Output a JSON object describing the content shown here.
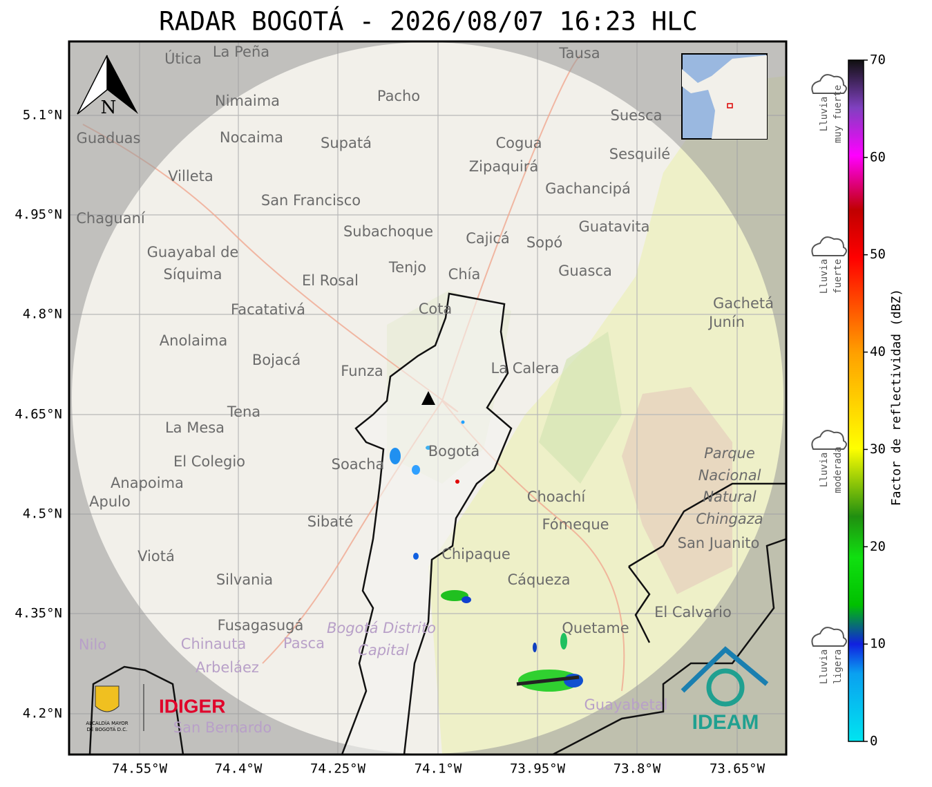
{
  "title": "RADAR BOGOTÁ - 2026/08/07 16:23 HLC",
  "map": {
    "lat_ticks": [
      "5.1°N",
      "4.95°N",
      "4.8°N",
      "4.65°N",
      "4.5°N",
      "4.35°N",
      "4.2°N"
    ],
    "lon_ticks": [
      "74.55°W",
      "74.4°W",
      "74.25°W",
      "74.1°W",
      "73.95°W",
      "73.8°W",
      "73.65°W"
    ],
    "north": "N",
    "places": [
      "Útica",
      "La Peña",
      "Tausa",
      "Pacho",
      "Nimaima",
      "Guaduas",
      "Nocaima",
      "Supatá",
      "Cogua",
      "Suesca",
      "Sesquilé",
      "Villeta",
      "Zipaquirá",
      "Gachancipá",
      "San Francisco",
      "Chaguaní",
      "Subachoque",
      "Cajicá",
      "Sopó",
      "Guatavita",
      "Guayabal de",
      "Síquima",
      "Tenjo",
      "Chía",
      "Guasca",
      "El Rosal",
      "Facatativá",
      "Cota",
      "Gachetá",
      "Junín",
      "Anolaima",
      "Bojacá",
      "Funza",
      "La Calera",
      "Tena",
      "La Mesa",
      "Bogotá",
      "El Colegio",
      "Soacha",
      "Parque",
      "Nacional",
      "Natural",
      "Chingaza",
      "Anapoima",
      "Apulo",
      "Choachí",
      "Fómeque",
      "San Juanito",
      "Sibaté",
      "Viotá",
      "Chipaque",
      "Silvania",
      "Cáqueza",
      "El Calvario",
      "Fusagasugá",
      "Quetame",
      "Bogotá Distrito",
      "Capital",
      "Chinauta",
      "Pasca",
      "Nilo",
      "Arbeláez",
      "Guayabetal",
      "San Bernardo"
    ],
    "logos": {
      "alcaldia": [
        "ALCALDÍA MAYOR",
        "DE BOGOTÁ D.C."
      ],
      "idiger": "IDIGER",
      "ideam": "IDEAM"
    }
  },
  "colorbar": {
    "ticks": [
      "0",
      "10",
      "20",
      "30",
      "40",
      "50",
      "60",
      "70"
    ],
    "label": "Factor de reflectividad (dBZ)"
  },
  "categories": [
    [
      "Lluvia",
      "muy fuerte"
    ],
    [
      "Lluvia",
      "fuerte"
    ],
    [
      "Lluvia",
      "moderada"
    ],
    [
      "Lluvia",
      "ligera"
    ]
  ]
}
